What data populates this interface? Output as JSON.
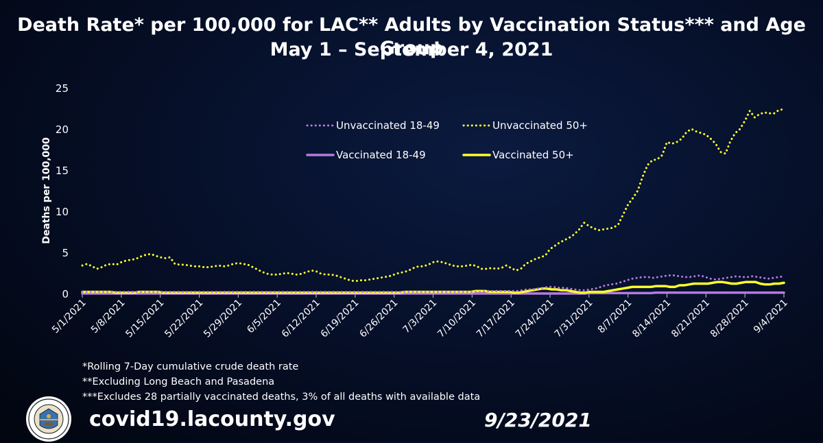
{
  "header": {
    "title_line1": "Death Rate* per 100,000 for LAC** Adults by Vaccination Status*** and Age Group",
    "title_line2": "May 1 – September 4, 2021"
  },
  "footnotes": [
    "*Rolling 7-Day cumulative crude death rate",
    "**Excluding Long Beach and Pasadena",
    "***Excludes 28 partially vaccinated deaths, 3% of all deaths with available data"
  ],
  "footer": {
    "url": "covid19.lacounty.gov",
    "date": "9/23/2021",
    "seal_text": "COUNTY OF LOS ANGELES · CALIFORNIA"
  },
  "chart_data": {
    "type": "line",
    "ylabel": "Deaths per 100,000",
    "ylim": [
      0,
      25
    ],
    "yticks": [
      0,
      5,
      10,
      15,
      20,
      25
    ],
    "xticks": [
      "5/1/2021",
      "5/8/2021",
      "5/15/2021",
      "5/22/2021",
      "5/29/2021",
      "6/5/2021",
      "6/12/2021",
      "6/19/2021",
      "6/26/2021",
      "7/3/2021",
      "7/10/2021",
      "7/17/2021",
      "7/24/2021",
      "7/31/2021",
      "8/7/2021",
      "8/14/2021",
      "8/21/2021",
      "8/28/2021",
      "9/4/2021"
    ],
    "grid": false,
    "legend_position": "top-center",
    "series": [
      {
        "name": "Unvaccinated 18-49",
        "style": "dotted",
        "color": "#b57be0",
        "values": [
          0.2,
          0.2,
          0.2,
          0.2,
          0.2,
          0.2,
          0.2,
          0.2,
          0.2,
          0.2,
          0.2,
          0.2,
          0.2,
          0.2,
          0.2,
          0.2,
          0.2,
          0.2,
          0.2,
          0.2,
          0.2,
          0.2,
          0.2,
          0.2,
          0.2,
          0.2,
          0.2,
          0.2,
          0.2,
          0.2,
          0.2,
          0.2,
          0.2,
          0.2,
          0.2,
          0.2,
          0.2,
          0.2,
          0.2,
          0.2,
          0.2,
          0.2,
          0.2,
          0.2,
          0.2,
          0.2,
          0.2,
          0.2,
          0.2,
          0.2,
          0.2,
          0.2,
          0.2,
          0.2,
          0.2,
          0.2,
          0.2,
          0.2,
          0.2,
          0.2,
          0.2,
          0.2,
          0.2,
          0.2,
          0.2,
          0.2,
          0.2,
          0.2,
          0.2,
          0.2,
          0.2,
          0.2,
          0.2,
          0.2,
          0.2,
          0.2,
          0.2,
          0.3,
          0.3,
          0.3,
          0.3,
          0.3,
          0.3,
          0.3,
          0.4,
          0.5,
          0.5,
          0.6,
          0.7,
          0.8,
          0.8,
          0.7,
          0.7,
          0.6,
          0.5,
          0.4,
          0.4,
          0.5,
          0.6,
          0.8,
          1.0,
          1.1,
          1.2,
          1.4,
          1.6,
          1.8,
          1.9,
          2.0,
          2.0,
          1.9,
          2.0,
          2.1,
          2.2,
          2.2,
          2.1,
          2.0,
          2.0,
          2.1,
          2.2,
          2.0,
          1.8,
          1.7,
          1.8,
          1.9,
          2.0,
          2.1,
          2.0,
          2.0,
          2.1,
          2.0,
          1.9,
          1.8,
          1.9,
          2.0,
          2.1
        ]
      },
      {
        "name": "Unvaccinated 50+",
        "style": "dotted",
        "color": "#ffff2b",
        "values": [
          3.4,
          3.6,
          3.3,
          3.0,
          3.2,
          3.5,
          3.6,
          3.5,
          3.8,
          4.0,
          4.1,
          4.2,
          4.5,
          4.7,
          4.8,
          4.6,
          4.4,
          4.3,
          4.4,
          3.6,
          3.5,
          3.5,
          3.4,
          3.3,
          3.3,
          3.2,
          3.2,
          3.3,
          3.4,
          3.3,
          3.4,
          3.6,
          3.7,
          3.6,
          3.5,
          3.2,
          2.9,
          2.6,
          2.4,
          2.3,
          2.3,
          2.4,
          2.5,
          2.4,
          2.3,
          2.4,
          2.6,
          2.8,
          2.7,
          2.4,
          2.3,
          2.3,
          2.2,
          2.0,
          1.8,
          1.6,
          1.5,
          1.6,
          1.6,
          1.7,
          1.8,
          1.9,
          2.0,
          2.1,
          2.3,
          2.5,
          2.6,
          2.8,
          3.1,
          3.3,
          3.3,
          3.5,
          3.8,
          3.9,
          3.8,
          3.6,
          3.4,
          3.3,
          3.3,
          3.4,
          3.5,
          3.3,
          3.0,
          3.0,
          3.1,
          3.0,
          3.1,
          3.4,
          3.1,
          2.8,
          3.0,
          3.6,
          3.9,
          4.2,
          4.4,
          4.6,
          5.4,
          5.8,
          6.2,
          6.5,
          6.8,
          7.2,
          7.8,
          8.6,
          8.2,
          7.9,
          7.7,
          7.8,
          7.9,
          8.0,
          8.4,
          9.6,
          10.8,
          11.6,
          12.5,
          14.2,
          15.6,
          16.2,
          16.3,
          16.8,
          18.4,
          18.2,
          18.4,
          18.8,
          19.6,
          20.0,
          19.7,
          19.5,
          19.3,
          18.8,
          18.2,
          17.2,
          17.0,
          18.5,
          19.5,
          20.0,
          21.0,
          22.2,
          21.4,
          21.8,
          22.0,
          21.9,
          21.9,
          22.3,
          22.4
        ]
      },
      {
        "name": "Vaccinated 18-49",
        "style": "solid",
        "color": "#b57be0",
        "values": [
          0.0,
          0.0,
          0.0,
          0.0,
          0.0,
          0.0,
          0.0,
          0.0,
          0.0,
          0.0,
          0.0,
          0.0,
          0.0,
          0.0,
          0.0,
          0.0,
          0.0,
          0.0,
          0.0,
          0.0,
          0.0,
          0.0,
          0.0,
          0.0,
          0.0,
          0.0,
          0.0,
          0.0,
          0.0,
          0.0,
          0.0,
          0.0,
          0.0,
          0.0,
          0.0,
          0.0,
          0.0,
          0.0,
          0.0,
          0.0,
          0.0,
          0.0,
          0.0,
          0.0,
          0.0,
          0.0,
          0.0,
          0.0,
          0.0,
          0.0,
          0.0,
          0.0,
          0.0,
          0.0,
          0.0,
          0.0,
          0.0,
          0.0,
          0.0,
          0.0,
          0.0,
          0.0,
          0.0,
          0.0,
          0.0,
          0.0,
          0.0,
          0.0,
          0.0,
          0.0,
          0.0,
          0.0,
          0.0,
          0.0,
          0.0,
          0.0,
          0.0,
          0.0,
          0.0,
          0.0,
          0.0,
          0.0,
          0.0,
          0.0,
          0.0,
          0.0,
          0.0,
          0.0,
          0.0,
          0.0,
          0.0,
          0.0,
          0.0,
          0.0,
          0.0,
          0.0,
          0.0,
          0.0,
          0.0,
          0.0,
          0.0,
          0.0,
          0.0,
          0.0,
          0.0,
          0.0,
          0.0,
          0.0,
          0.0,
          0.0,
          0.0,
          0.0,
          0.0,
          0.0,
          0.0,
          0.0,
          0.0,
          0.0,
          0.0,
          0.0,
          0.0,
          0.0,
          0.0,
          0.0,
          0.0,
          0.0,
          0.0,
          0.0,
          0.0,
          0.0,
          0.05,
          0.05,
          0.05,
          0.05,
          0.05,
          0.05,
          0.05,
          0.05,
          0.05,
          0.05,
          0.05,
          0.05,
          0.05,
          0.05,
          0.05,
          0.05,
          0.05,
          0.1,
          0.1,
          0.1,
          0.1,
          0.1,
          0.1,
          0.1,
          0.1,
          0.1,
          0.1,
          0.1,
          0.1,
          0.1,
          0.1,
          0.1,
          0.1,
          0.1,
          0.1,
          0.1,
          0.1,
          0.1,
          0.1,
          0.1,
          0.1,
          0.1,
          0.1,
          0.1,
          0.1,
          0.1,
          0.1,
          0.1,
          0.1,
          0.1,
          0.1
        ]
      },
      {
        "name": "Vaccinated 50+",
        "style": "solid",
        "color": "#ffff2b",
        "values": [
          0.2,
          0.2,
          0.2,
          0.2,
          0.2,
          0.2,
          0.2,
          0.1,
          0.1,
          0.1,
          0.1,
          0.1,
          0.2,
          0.2,
          0.2,
          0.2,
          0.2,
          0.1,
          0.1,
          0.1,
          0.1,
          0.1,
          0.1,
          0.1,
          0.1,
          0.1,
          0.1,
          0.1,
          0.1,
          0.1,
          0.1,
          0.1,
          0.1,
          0.1,
          0.1,
          0.1,
          0.1,
          0.1,
          0.1,
          0.1,
          0.1,
          0.1,
          0.1,
          0.1,
          0.1,
          0.1,
          0.1,
          0.1,
          0.1,
          0.1,
          0.1,
          0.1,
          0.1,
          0.1,
          0.1,
          0.1,
          0.1,
          0.1,
          0.1,
          0.1,
          0.1,
          0.1,
          0.1,
          0.1,
          0.1,
          0.1,
          0.1,
          0.1,
          0.2,
          0.2,
          0.2,
          0.2,
          0.2,
          0.2,
          0.2,
          0.2,
          0.2,
          0.2,
          0.2,
          0.2,
          0.2,
          0.2,
          0.2,
          0.3,
          0.3,
          0.3,
          0.2,
          0.2,
          0.2,
          0.2,
          0.2,
          0.1,
          0.1,
          0.2,
          0.3,
          0.4,
          0.5,
          0.6,
          0.6,
          0.5,
          0.5,
          0.4,
          0.4,
          0.3,
          0.2,
          0.1,
          0.1,
          0.2,
          0.2,
          0.2,
          0.2,
          0.3,
          0.4,
          0.5,
          0.6,
          0.7,
          0.8,
          0.8,
          0.8,
          0.8,
          0.8,
          0.9,
          0.9,
          0.9,
          0.8,
          0.8,
          1.0,
          1.0,
          1.1,
          1.2,
          1.2,
          1.2,
          1.2,
          1.3,
          1.4,
          1.4,
          1.3,
          1.2,
          1.2,
          1.3,
          1.4,
          1.4,
          1.4,
          1.2,
          1.1,
          1.1,
          1.2,
          1.2,
          1.3
        ]
      }
    ]
  }
}
